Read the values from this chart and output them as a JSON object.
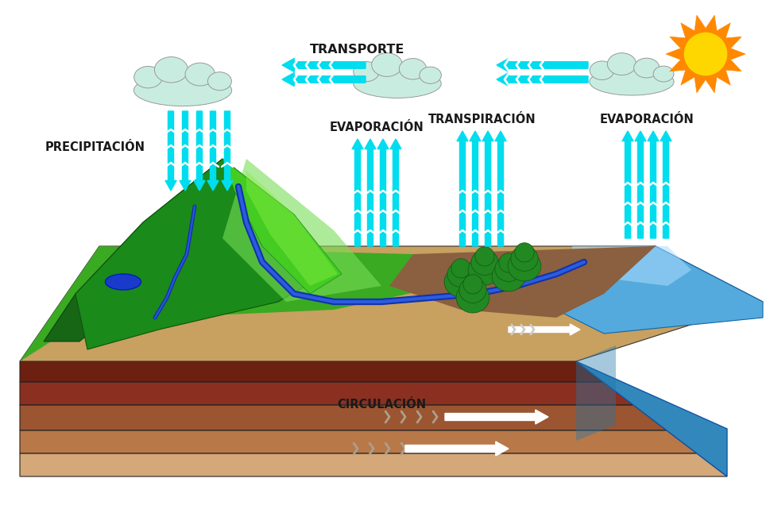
{
  "bg_color": "#ffffff",
  "labels": {
    "transporte": "TRANSPORTE",
    "precipitacion": "PRECIPITACIÓN",
    "evaporacion1": "EVAPORACIÓN",
    "transpiracion": "TRANSPIRACIÓN",
    "evaporacion2": "EVAPORACIÓN",
    "circulacion": "CIRCULACIÓN"
  },
  "label_color": "#1a1a1a",
  "label_fontsize": 10.5,
  "cyan": "#00DDEE",
  "cloud_fill": "#c8ede0",
  "cloud_edge": "#999999",
  "sun_yellow": "#FFD700",
  "sun_orange": "#FF8800",
  "mountain_dark": "#1a7a1a",
  "mountain_mid": "#2a9a2a",
  "mountain_light": "#44bb33",
  "mountain_hatch": "#55cc44",
  "soil_sandy": "#d4b896",
  "soil_mid": "#b8926a",
  "soil_brown": "#9b6b3a",
  "soil_dark": "#8B3A2A",
  "soil_rock": "#6b2a1a",
  "water_face": "#4499cc",
  "water_top": "#55aadd",
  "water_shine": "#99ccee",
  "river_dark": "#1a44bb",
  "river_light": "#4488ee",
  "brown_land": "#8B6543",
  "green_land": "#3aaa22",
  "tree_trunk": "#5a2a0a",
  "tree_canopy": "#228822",
  "white": "#ffffff"
}
